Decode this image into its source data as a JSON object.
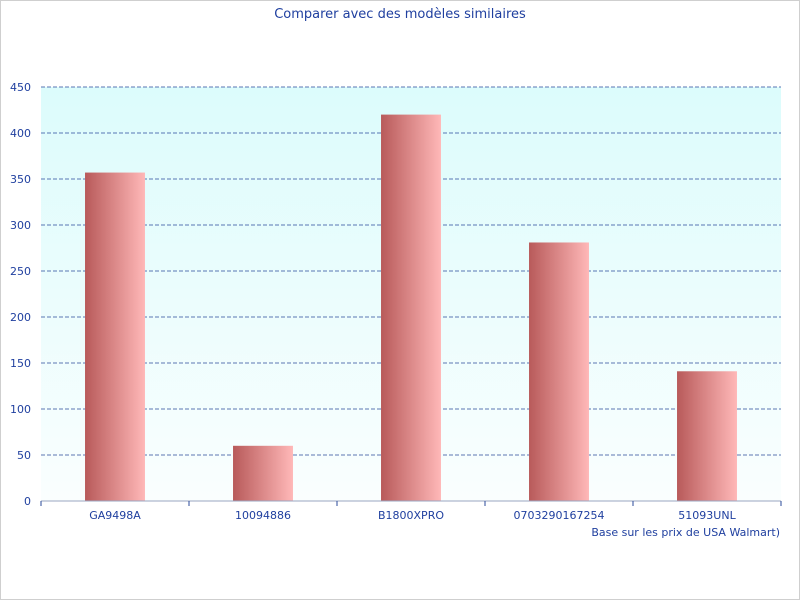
{
  "chart_data": {
    "type": "bar",
    "title": "Comparer avec des modèles similaires",
    "xlabel": "Base sur les prix de USA Walmart)",
    "ylabel": "",
    "categories": [
      "GA9498A",
      "10094886",
      "B1800XPRO",
      "0703290167254",
      "51093UNL"
    ],
    "values": [
      357,
      60,
      420,
      281,
      141
    ],
    "ylim": [
      0,
      450
    ],
    "yticks": [
      0,
      50,
      100,
      150,
      200,
      250,
      300,
      350,
      400,
      450
    ],
    "grid": true,
    "colors": {
      "bar_dark": "#b85a5a",
      "bar_light": "#ffb8b8",
      "plot_top": "#dcfcfc",
      "plot_bottom": "#fafefe",
      "grid": "#2a4a9a",
      "text": "#1f3f9f",
      "axis": "#9aa6c0"
    }
  }
}
